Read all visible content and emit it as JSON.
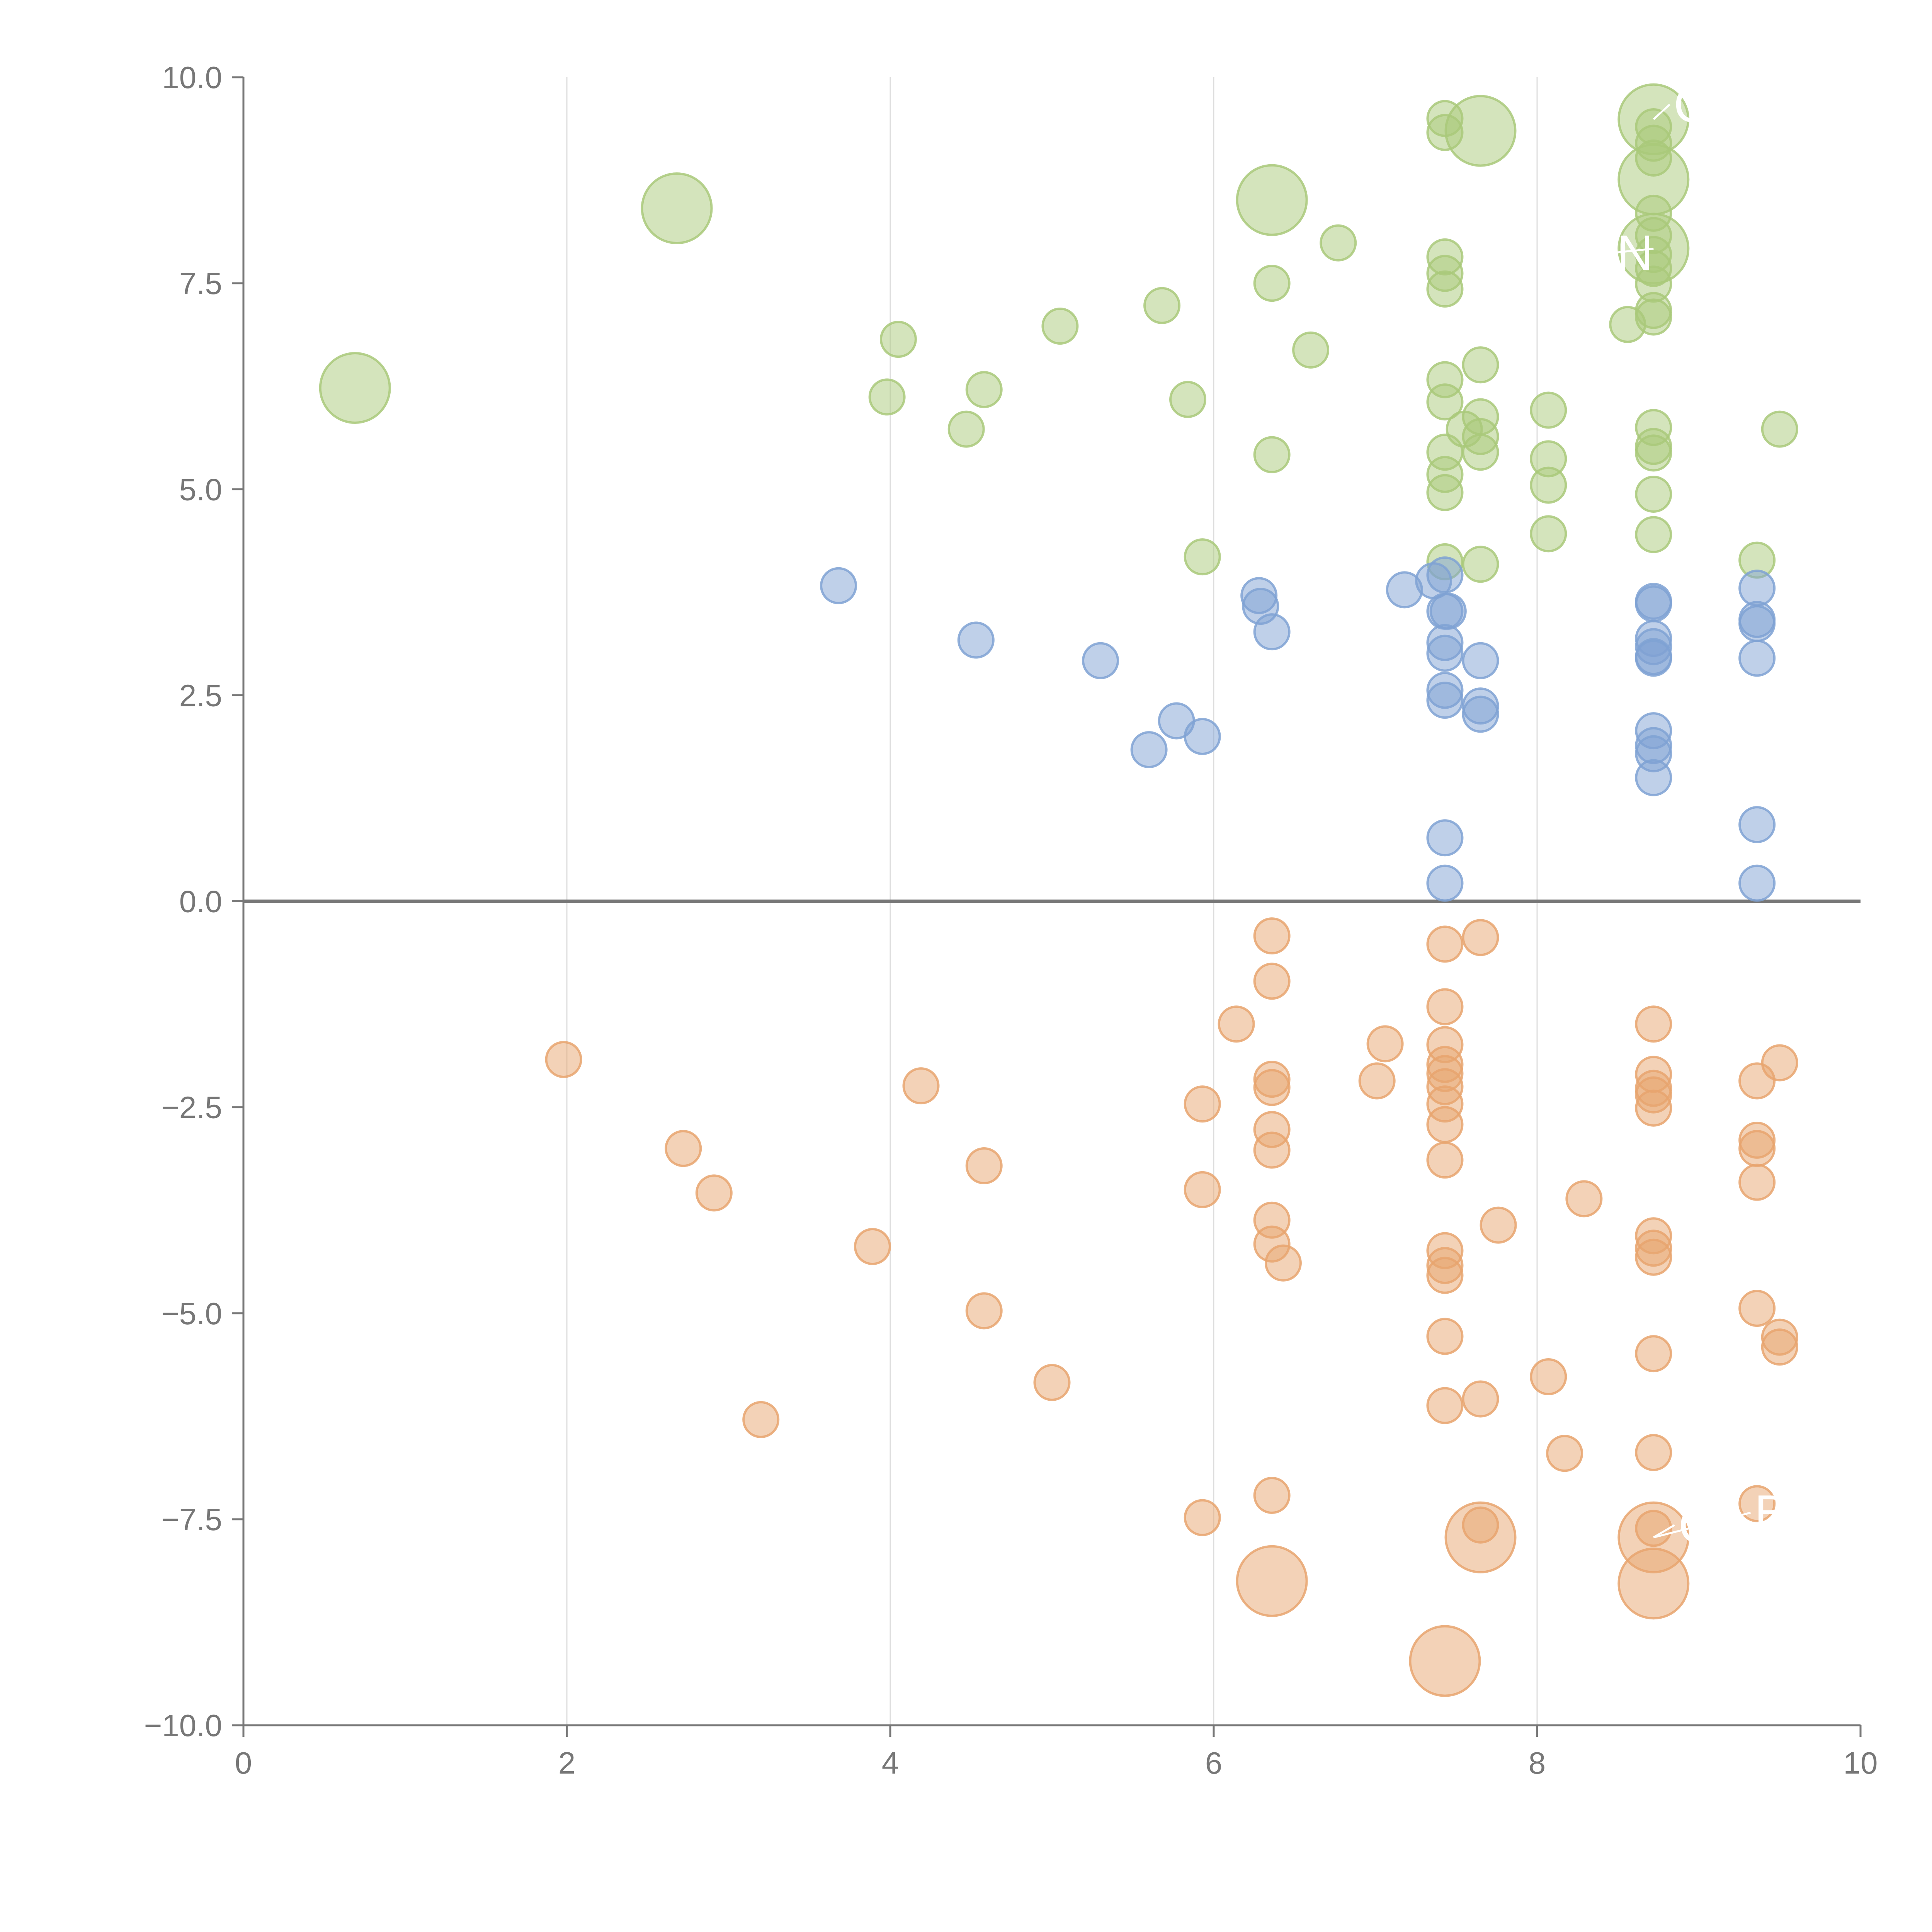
{
  "chart_data": {
    "type": "scatter",
    "title": "",
    "xlabel": "",
    "ylabel": "",
    "xlim": [
      0,
      10
    ],
    "ylim": [
      -10,
      10
    ],
    "grid": "vertical",
    "x_ticks": [
      "0",
      "2",
      "4",
      "6",
      "8",
      "10"
    ],
    "y_ticks": [
      "−10.0",
      "−7.5",
      "−5.0",
      "−2.5",
      "0.0",
      "2.5",
      "5.0",
      "7.5",
      "10.0"
    ],
    "colors": {
      "green": "#a9c97a",
      "blue": "#7fa2d4",
      "orange": "#e8a56f"
    },
    "series": [
      {
        "name": "green",
        "color_key": "green",
        "points": [
          [
            0.69,
            6.23,
            3
          ],
          [
            2.68,
            8.41,
            3
          ],
          [
            6.36,
            8.51,
            3
          ],
          [
            7.65,
            9.35,
            3
          ],
          [
            8.72,
            9.49,
            3
          ],
          [
            8.72,
            8.76,
            3
          ],
          [
            8.72,
            7.92,
            3
          ],
          [
            4.05,
            6.82,
            1
          ],
          [
            3.98,
            6.12,
            1
          ],
          [
            4.58,
            6.21,
            1
          ],
          [
            4.47,
            5.73,
            1
          ],
          [
            5.05,
            6.98,
            1
          ],
          [
            5.68,
            7.23,
            1
          ],
          [
            5.84,
            6.09,
            1
          ],
          [
            6.36,
            7.5,
            1
          ],
          [
            6.36,
            5.42,
            1
          ],
          [
            6.6,
            6.69,
            1
          ],
          [
            6.77,
            7.99,
            1
          ],
          [
            5.93,
            4.18,
            1
          ],
          [
            7.43,
            9.5,
            1
          ],
          [
            7.43,
            9.33,
            1
          ],
          [
            7.43,
            7.82,
            1
          ],
          [
            7.43,
            7.62,
            1
          ],
          [
            7.43,
            7.43,
            1
          ],
          [
            7.43,
            6.33,
            1
          ],
          [
            7.43,
            6.06,
            1
          ],
          [
            7.43,
            5.45,
            1
          ],
          [
            7.43,
            5.18,
            1
          ],
          [
            7.43,
            4.96,
            1
          ],
          [
            7.43,
            4.12,
            1
          ],
          [
            7.65,
            6.51,
            1
          ],
          [
            7.65,
            5.88,
            1
          ],
          [
            7.65,
            5.64,
            1
          ],
          [
            7.65,
            5.45,
            1
          ],
          [
            7.55,
            5.73,
            1
          ],
          [
            7.65,
            4.09,
            1
          ],
          [
            8.07,
            5.96,
            1
          ],
          [
            8.07,
            5.37,
            1
          ],
          [
            8.07,
            5.05,
            1
          ],
          [
            8.07,
            4.46,
            1
          ],
          [
            8.56,
            7.0,
            1
          ],
          [
            8.72,
            9.4,
            1
          ],
          [
            8.72,
            9.2,
            1
          ],
          [
            8.72,
            9.02,
            1
          ],
          [
            8.72,
            8.35,
            1
          ],
          [
            8.72,
            8.08,
            1
          ],
          [
            8.72,
            7.85,
            1
          ],
          [
            8.72,
            7.68,
            1
          ],
          [
            8.72,
            7.49,
            1
          ],
          [
            8.72,
            7.17,
            1
          ],
          [
            8.72,
            7.09,
            1
          ],
          [
            8.72,
            5.75,
            1
          ],
          [
            8.72,
            5.52,
            1
          ],
          [
            8.72,
            5.44,
            1
          ],
          [
            8.72,
            4.94,
            1
          ],
          [
            8.72,
            4.45,
            1
          ],
          [
            9.5,
            5.73,
            1
          ],
          [
            9.36,
            4.14,
            1
          ]
        ]
      },
      {
        "name": "blue",
        "color_key": "blue",
        "points": [
          [
            3.68,
            3.83,
            1
          ],
          [
            4.53,
            3.17,
            1
          ],
          [
            5.3,
            2.92,
            1
          ],
          [
            5.6,
            1.84,
            1
          ],
          [
            5.77,
            2.19,
            1
          ],
          [
            5.93,
            2.0,
            1
          ],
          [
            6.28,
            3.71,
            1
          ],
          [
            6.29,
            3.58,
            1
          ],
          [
            6.36,
            3.27,
            1
          ],
          [
            7.18,
            3.78,
            1
          ],
          [
            7.36,
            3.89,
            1
          ],
          [
            7.43,
            3.96,
            1
          ],
          [
            7.43,
            3.52,
            1
          ],
          [
            7.45,
            3.52,
            1
          ],
          [
            7.43,
            3.14,
            1
          ],
          [
            7.43,
            3.01,
            1
          ],
          [
            7.43,
            2.56,
            1
          ],
          [
            7.43,
            2.44,
            1
          ],
          [
            7.43,
            0.77,
            1
          ],
          [
            7.43,
            0.22,
            1
          ],
          [
            7.65,
            2.92,
            1
          ],
          [
            7.65,
            2.37,
            1
          ],
          [
            7.65,
            2.27,
            1
          ],
          [
            8.72,
            3.64,
            1
          ],
          [
            8.72,
            3.61,
            1
          ],
          [
            8.72,
            3.19,
            1
          ],
          [
            8.72,
            3.09,
            1
          ],
          [
            8.72,
            2.97,
            1
          ],
          [
            8.72,
            2.95,
            1
          ],
          [
            8.72,
            2.07,
            1
          ],
          [
            8.72,
            1.89,
            1
          ],
          [
            8.72,
            1.79,
            1
          ],
          [
            8.72,
            1.5,
            1
          ],
          [
            9.36,
            3.8,
            1
          ],
          [
            9.36,
            3.42,
            1
          ],
          [
            9.36,
            3.37,
            1
          ],
          [
            9.36,
            2.95,
            1
          ],
          [
            9.36,
            0.93,
            1
          ],
          [
            9.36,
            0.22,
            1
          ]
        ]
      },
      {
        "name": "orange",
        "color_key": "orange",
        "points": [
          [
            7.65,
            -7.72,
            3
          ],
          [
            8.72,
            -7.72,
            3
          ],
          [
            6.36,
            -8.25,
            3
          ],
          [
            8.72,
            -8.28,
            3
          ],
          [
            7.43,
            -9.22,
            3
          ],
          [
            1.98,
            -1.92,
            1
          ],
          [
            2.72,
            -3.0,
            1
          ],
          [
            2.91,
            -3.54,
            1
          ],
          [
            3.2,
            -6.29,
            1
          ],
          [
            3.89,
            -4.19,
            1
          ],
          [
            4.19,
            -2.24,
            1
          ],
          [
            4.58,
            -3.21,
            1
          ],
          [
            4.58,
            -4.97,
            1
          ],
          [
            5.0,
            -5.84,
            1
          ],
          [
            5.93,
            -2.46,
            1
          ],
          [
            5.93,
            -3.5,
            1
          ],
          [
            5.93,
            -7.48,
            1
          ],
          [
            6.14,
            -1.49,
            1
          ],
          [
            6.36,
            -0.42,
            1
          ],
          [
            6.36,
            -0.97,
            1
          ],
          [
            6.36,
            -2.16,
            1
          ],
          [
            6.36,
            -2.26,
            1
          ],
          [
            6.36,
            -2.77,
            1
          ],
          [
            6.36,
            -3.02,
            1
          ],
          [
            6.36,
            -3.87,
            1
          ],
          [
            6.36,
            -4.16,
            1
          ],
          [
            6.36,
            -7.21,
            1
          ],
          [
            6.43,
            -4.39,
            1
          ],
          [
            7.01,
            -2.18,
            1
          ],
          [
            7.06,
            -1.73,
            1
          ],
          [
            7.43,
            -0.52,
            1
          ],
          [
            7.43,
            -1.28,
            1
          ],
          [
            7.43,
            -1.74,
            1
          ],
          [
            7.43,
            -1.98,
            1
          ],
          [
            7.43,
            -2.09,
            1
          ],
          [
            7.43,
            -2.25,
            1
          ],
          [
            7.43,
            -2.46,
            1
          ],
          [
            7.43,
            -2.71,
            1
          ],
          [
            7.43,
            -3.14,
            1
          ],
          [
            7.43,
            -4.24,
            1
          ],
          [
            7.43,
            -4.42,
            1
          ],
          [
            7.43,
            -4.54,
            1
          ],
          [
            7.43,
            -5.28,
            1
          ],
          [
            7.43,
            -6.12,
            1
          ],
          [
            7.65,
            -0.44,
            1
          ],
          [
            7.65,
            -6.04,
            1
          ],
          [
            7.65,
            -7.57,
            1
          ],
          [
            7.76,
            -3.93,
            1
          ],
          [
            8.07,
            -5.77,
            1
          ],
          [
            8.17,
            -6.7,
            1
          ],
          [
            8.29,
            -3.61,
            1
          ],
          [
            8.72,
            -1.49,
            1
          ],
          [
            8.72,
            -2.1,
            1
          ],
          [
            8.72,
            -2.27,
            1
          ],
          [
            8.72,
            -2.35,
            1
          ],
          [
            8.72,
            -2.51,
            1
          ],
          [
            8.72,
            -4.06,
            1
          ],
          [
            8.72,
            -4.21,
            1
          ],
          [
            8.72,
            -4.32,
            1
          ],
          [
            8.72,
            -5.49,
            1
          ],
          [
            8.72,
            -6.69,
            1
          ],
          [
            8.72,
            -7.61,
            1
          ],
          [
            9.36,
            -2.18,
            1
          ],
          [
            9.36,
            -2.9,
            1
          ],
          [
            9.36,
            -3.0,
            1
          ],
          [
            9.36,
            -3.41,
            1
          ],
          [
            9.36,
            -4.94,
            1
          ],
          [
            9.36,
            -7.31,
            1
          ],
          [
            9.5,
            -1.96,
            1
          ],
          [
            9.5,
            -5.29,
            1
          ],
          [
            9.5,
            -5.41,
            1
          ]
        ]
      }
    ],
    "annotations": [
      {
        "text": "C",
        "x": 8.72,
        "y": 9.49,
        "dx": 0.1,
        "dy": 0.18
      },
      {
        "text": "N",
        "x": 8.72,
        "y": 7.92,
        "dx": -0.25,
        "dy": -0.05
      },
      {
        "text": "B",
        "x": 8.72,
        "y": -7.72,
        "dx": 0.6,
        "dy": 0.3
      },
      {
        "text": "C",
        "x": 8.72,
        "y": -7.72,
        "dx": 0.13,
        "dy": 0.15
      }
    ]
  }
}
